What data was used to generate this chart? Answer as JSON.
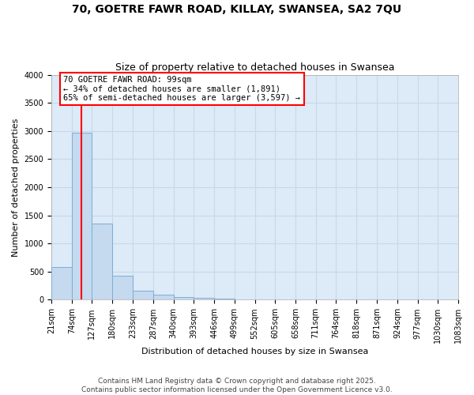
{
  "title1": "70, GOETRE FAWR ROAD, KILLAY, SWANSEA, SA2 7QU",
  "title2": "Size of property relative to detached houses in Swansea",
  "xlabel": "Distribution of detached houses by size in Swansea",
  "ylabel": "Number of detached properties",
  "bar_edges": [
    21,
    74,
    127,
    180,
    233,
    287,
    340,
    393,
    446,
    499,
    552,
    605,
    658,
    711,
    764,
    818,
    871,
    924,
    977,
    1030,
    1083
  ],
  "bar_heights": [
    580,
    2975,
    1350,
    430,
    155,
    85,
    50,
    30,
    15,
    8,
    5,
    3,
    2,
    1,
    1,
    0,
    0,
    0,
    0,
    0,
    0
  ],
  "bar_color": "#c5d9ef",
  "bar_edgecolor": "#7bafd4",
  "property_sqm": 99,
  "property_line_color": "red",
  "annotation_text": "70 GOETRE FAWR ROAD: 99sqm\n← 34% of detached houses are smaller (1,891)\n65% of semi-detached houses are larger (3,597) →",
  "annotation_text_color": "black",
  "ylim": [
    0,
    4000
  ],
  "yticks": [
    0,
    500,
    1000,
    1500,
    2000,
    2500,
    3000,
    3500,
    4000
  ],
  "tick_labels": [
    "21sqm",
    "74sqm",
    "127sqm",
    "180sqm",
    "233sqm",
    "287sqm",
    "340sqm",
    "393sqm",
    "446sqm",
    "499sqm",
    "552sqm",
    "605sqm",
    "658sqm",
    "711sqm",
    "764sqm",
    "818sqm",
    "871sqm",
    "924sqm",
    "977sqm",
    "1030sqm",
    "1083sqm"
  ],
  "footer_text": "Contains HM Land Registry data © Crown copyright and database right 2025.\nContains public sector information licensed under the Open Government Licence v3.0.",
  "fig_background_color": "#ffffff",
  "plot_background_color": "#ddeaf7",
  "grid_color": "#c8d8e8",
  "title_fontsize": 10,
  "subtitle_fontsize": 9,
  "label_fontsize": 8,
  "tick_fontsize": 7,
  "footer_fontsize": 6.5
}
